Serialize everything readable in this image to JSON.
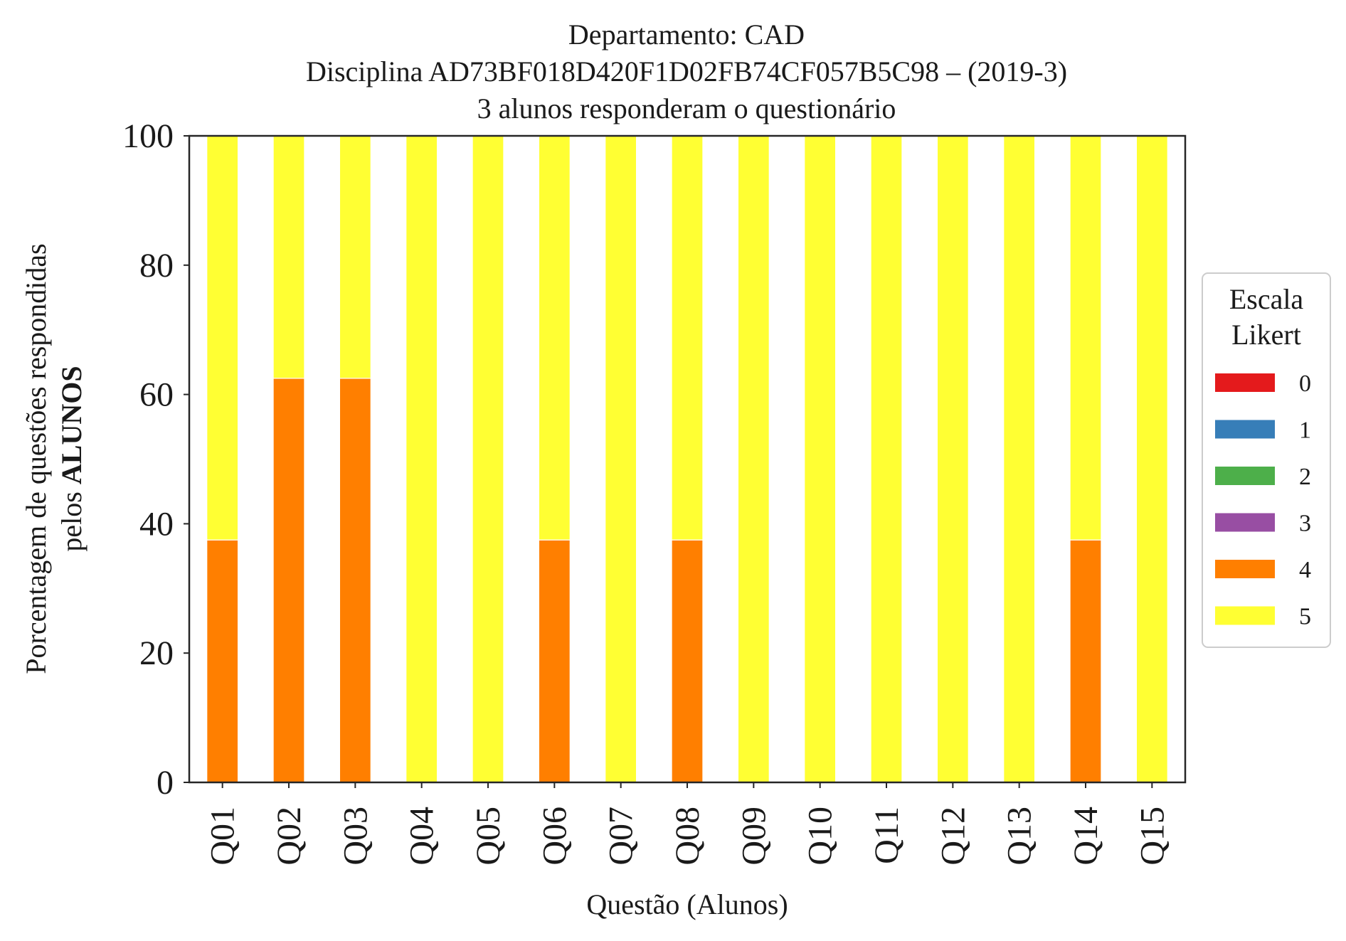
{
  "chart_data": {
    "type": "bar",
    "stacked": true,
    "title_lines": [
      "Departamento: CAD",
      "Disciplina AD73BF018D420F1D02FB74CF057B5C98 – (2019-3)",
      "3 alunos responderam o questionário"
    ],
    "xlabel": "Questão (Alunos)",
    "ylabel_line1": "Porcentagem de questões respondidas",
    "ylabel_line2_prefix": "pelos ",
    "ylabel_line2_bold": "ALUNOS",
    "ylim": [
      0,
      100
    ],
    "yticks": [
      "0",
      "20",
      "40",
      "60",
      "80",
      "100"
    ],
    "grid": false,
    "legend_placement": "right",
    "categories": [
      "Q01",
      "Q02",
      "Q03",
      "Q04",
      "Q05",
      "Q06",
      "Q07",
      "Q08",
      "Q09",
      "Q10",
      "Q11",
      "Q12",
      "Q13",
      "Q14",
      "Q15"
    ],
    "legend": {
      "title_lines": [
        "Escala",
        "Likert"
      ]
    },
    "series": [
      {
        "name": "0",
        "color": "#e41a1c",
        "values": [
          0,
          0,
          0,
          0,
          0,
          0,
          0,
          0,
          0,
          0,
          0,
          0,
          0,
          0,
          0
        ]
      },
      {
        "name": "1",
        "color": "#377eb8",
        "values": [
          0,
          0,
          0,
          0,
          0,
          0,
          0,
          0,
          0,
          0,
          0,
          0,
          0,
          0,
          0
        ]
      },
      {
        "name": "2",
        "color": "#4daf4a",
        "values": [
          0,
          0,
          0,
          0,
          0,
          0,
          0,
          0,
          0,
          0,
          0,
          0,
          0,
          0,
          0
        ]
      },
      {
        "name": "3",
        "color": "#984ea3",
        "values": [
          0,
          0,
          0,
          0,
          0,
          0,
          0,
          0,
          0,
          0,
          0,
          0,
          0,
          0,
          0
        ]
      },
      {
        "name": "4",
        "color": "#ff7f00",
        "values": [
          37.5,
          62.5,
          62.5,
          0,
          0,
          37.5,
          0,
          37.5,
          0,
          0,
          0,
          0,
          0,
          37.5,
          0
        ]
      },
      {
        "name": "5",
        "color": "#ffff33",
        "values": [
          62.5,
          37.5,
          37.5,
          100,
          100,
          62.5,
          100,
          62.5,
          100,
          100,
          100,
          100,
          100,
          62.5,
          100
        ]
      }
    ]
  }
}
